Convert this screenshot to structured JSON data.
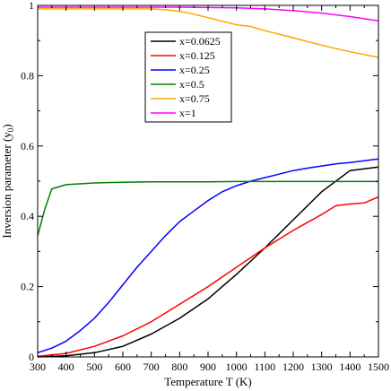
{
  "chart_data": {
    "type": "line",
    "title": "",
    "xlabel": "Temperature T (K)",
    "ylabel_main": "Inversion parameter (y",
    "ylabel_sub": "0",
    "ylabel_close": ")",
    "xlim": [
      300,
      1500
    ],
    "ylim": [
      0,
      1
    ],
    "xticks": [
      300,
      400,
      500,
      600,
      700,
      800,
      900,
      1000,
      1100,
      1200,
      1300,
      1400,
      1500
    ],
    "yticks": [
      0,
      0.2,
      0.4,
      0.6,
      0.8,
      1
    ],
    "ytick_labels": [
      "0",
      "0.2",
      "0.4",
      "0.6",
      "0.8",
      "1"
    ],
    "grid": false,
    "legend_position": "top-center",
    "series": [
      {
        "name": "x=0.0625",
        "color": "#000000",
        "x": [
          300,
          400,
          500,
          600,
          700,
          800,
          900,
          1000,
          1100,
          1200,
          1300,
          1400,
          1500
        ],
        "y": [
          0.0,
          0.003,
          0.012,
          0.03,
          0.065,
          0.11,
          0.165,
          0.235,
          0.31,
          0.39,
          0.47,
          0.53,
          0.54
        ]
      },
      {
        "name": "x=0.125",
        "color": "#ff0000",
        "x": [
          300,
          400,
          500,
          600,
          700,
          800,
          900,
          1000,
          1100,
          1200,
          1300,
          1350,
          1400,
          1450,
          1500
        ],
        "y": [
          0.002,
          0.01,
          0.03,
          0.06,
          0.1,
          0.15,
          0.2,
          0.255,
          0.31,
          0.36,
          0.405,
          0.43,
          0.435,
          0.438,
          0.455
        ]
      },
      {
        "name": "x=0.25",
        "color": "#0000ff",
        "x": [
          300,
          350,
          400,
          450,
          500,
          550,
          600,
          650,
          700,
          750,
          800,
          850,
          900,
          950,
          1000,
          1050,
          1100,
          1150,
          1200,
          1250,
          1300,
          1350,
          1400,
          1450,
          1500
        ],
        "y": [
          0.012,
          0.025,
          0.045,
          0.075,
          0.11,
          0.155,
          0.205,
          0.255,
          0.3,
          0.345,
          0.385,
          0.415,
          0.445,
          0.47,
          0.487,
          0.5,
          0.51,
          0.52,
          0.53,
          0.537,
          0.543,
          0.549,
          0.553,
          0.558,
          0.563
        ]
      },
      {
        "name": "x=0.5",
        "color": "#008000",
        "x": [
          300,
          325,
          350,
          400,
          500,
          600,
          700,
          800,
          900,
          1000,
          1100,
          1200,
          1300,
          1400,
          1500
        ],
        "y": [
          0.345,
          0.42,
          0.478,
          0.49,
          0.495,
          0.497,
          0.498,
          0.498,
          0.498,
          0.499,
          0.499,
          0.499,
          0.499,
          0.499,
          0.499
        ]
      },
      {
        "name": "x=0.75",
        "color": "#ffa500",
        "x": [
          300,
          400,
          500,
          600,
          700,
          750,
          800,
          850,
          900,
          950,
          1000,
          1050,
          1100,
          1150,
          1200,
          1250,
          1300,
          1350,
          1400,
          1450,
          1500
        ],
        "y": [
          0.99,
          0.99,
          0.99,
          0.99,
          0.99,
          0.988,
          0.983,
          0.975,
          0.965,
          0.955,
          0.945,
          0.94,
          0.928,
          0.918,
          0.908,
          0.897,
          0.887,
          0.877,
          0.868,
          0.86,
          0.852
        ]
      },
      {
        "name": "x=1",
        "color": "#ff00ff",
        "x": [
          300,
          400,
          500,
          600,
          700,
          800,
          900,
          1000,
          1100,
          1200,
          1300,
          1400,
          1500
        ],
        "y": [
          0.995,
          0.995,
          0.995,
          0.995,
          0.995,
          0.995,
          0.994,
          0.993,
          0.99,
          0.985,
          0.978,
          0.968,
          0.956
        ]
      }
    ]
  }
}
